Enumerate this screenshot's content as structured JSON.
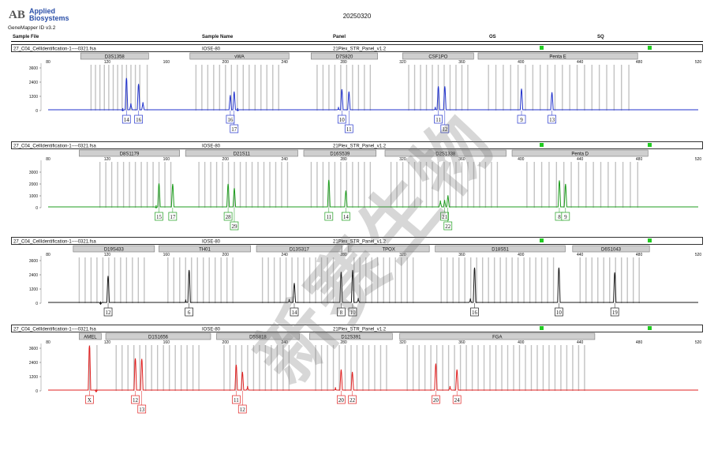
{
  "header": {
    "logo_mark_text": "AB",
    "brand_line1": "Applied",
    "brand_line2": "Biosystems",
    "product": "GeneMapper ID v3.2",
    "report_date": "20250320",
    "columns": {
      "sample_file": "Sample File",
      "sample_name": "Sample Name",
      "panel": "Panel",
      "os": "OS",
      "sq": "SQ"
    }
  },
  "colors": {
    "blue": "#2233cc",
    "green": "#1f9e1f",
    "black": "#1a1a1a",
    "red": "#e02020",
    "bin": "#c2c2c2",
    "locus_box": "#cfcfcf",
    "status_ok": "#22cc22"
  },
  "watermark": "新赛生物",
  "chart_data": [
    {
      "type": "line",
      "dye": "blue",
      "sample_file": "27_C04_CellIdentification-1----0321.fsa",
      "sample_name": "IOSE-80",
      "panel": "21Plex_STR_Panel_v1.2",
      "xlim": [
        80,
        520
      ],
      "xticks": [
        "80",
        "120",
        "160",
        "200",
        "240",
        "280",
        "320",
        "360",
        "400",
        "440",
        "480",
        "520"
      ],
      "ylim": [
        0,
        4000
      ],
      "yticks": [
        "0",
        "1200",
        "2400",
        "3600"
      ],
      "loci": [
        {
          "name": "D3S1358",
          "start": 102,
          "end": 148
        },
        {
          "name": "vWA",
          "start": 176,
          "end": 243
        },
        {
          "name": "D7S820",
          "start": 258,
          "end": 303
        },
        {
          "name": "CSF1PO",
          "start": 320,
          "end": 368
        },
        {
          "name": "Penta E",
          "start": 371,
          "end": 479
        }
      ],
      "bins": [
        109,
        112,
        115,
        118,
        121,
        124,
        127,
        130,
        133,
        136,
        139,
        142,
        147,
        180,
        184,
        188,
        192,
        196,
        200,
        204,
        208,
        212,
        216,
        220,
        224,
        228,
        232,
        236,
        262,
        266,
        270,
        274,
        278,
        282,
        286,
        290,
        294,
        298,
        324,
        328,
        332,
        336,
        340,
        344,
        348,
        352,
        356,
        360,
        364,
        378,
        383,
        388,
        393,
        398,
        403,
        408,
        413,
        418,
        423,
        428,
        433,
        438,
        443,
        448,
        453,
        458,
        463,
        468,
        473
      ],
      "peaks": [
        {
          "x": 130.5,
          "y": 200
        },
        {
          "x": 133.0,
          "y": 2750
        },
        {
          "x": 136.0,
          "y": 600
        },
        {
          "x": 141.2,
          "y": 2250
        },
        {
          "x": 144.2,
          "y": 700
        },
        {
          "x": 203.3,
          "y": 1300
        },
        {
          "x": 205.9,
          "y": 1600
        },
        {
          "x": 208.3,
          "y": 200
        },
        {
          "x": 276.5,
          "y": 300
        },
        {
          "x": 278.8,
          "y": 1800
        },
        {
          "x": 283.6,
          "y": 1600
        },
        {
          "x": 342.0,
          "y": 300
        },
        {
          "x": 344.1,
          "y": 2050
        },
        {
          "x": 348.5,
          "y": 2050
        },
        {
          "x": 400.4,
          "y": 1850
        },
        {
          "x": 421.0,
          "y": 1550
        }
      ],
      "allele_labels": [
        {
          "text": "14",
          "x": 133.0,
          "row": 1
        },
        {
          "text": "16",
          "x": 141.2,
          "row": 1
        },
        {
          "text": "16",
          "x": 203.3,
          "row": 1
        },
        {
          "text": "17",
          "x": 205.9,
          "row": 2
        },
        {
          "text": "10",
          "x": 278.8,
          "row": 1
        },
        {
          "text": "11",
          "x": 283.6,
          "row": 2
        },
        {
          "text": "11",
          "x": 344.1,
          "row": 1
        },
        {
          "text": "12",
          "x": 348.5,
          "row": 2
        },
        {
          "text": "9",
          "x": 400.4,
          "row": 1
        },
        {
          "text": "13",
          "x": 421.0,
          "row": 1
        }
      ]
    },
    {
      "type": "line",
      "dye": "green",
      "sample_file": "27_C04_CellIdentification-1----0321.fsa",
      "sample_name": "IOSE-80",
      "panel": "21Plex_STR_Panel_v1.2",
      "xlim": [
        80,
        520
      ],
      "xticks": [
        "80",
        "120",
        "160",
        "200",
        "240",
        "280",
        "320",
        "360",
        "400",
        "440",
        "480",
        "520"
      ],
      "ylim": [
        0,
        4000
      ],
      "yticks": [
        "0",
        "1000",
        "2000",
        "3000"
      ],
      "loci": [
        {
          "name": "D8S1179",
          "start": 101,
          "end": 169
        },
        {
          "name": "D21S11",
          "start": 173,
          "end": 249
        },
        {
          "name": "D16S539",
          "start": 253,
          "end": 302
        },
        {
          "name": "D2S1338",
          "start": 308,
          "end": 390
        },
        {
          "name": "Penta D",
          "start": 394,
          "end": 486
        }
      ],
      "bins": [
        115,
        119,
        123,
        127,
        131,
        135,
        139,
        143,
        147,
        151,
        155,
        159,
        163,
        182,
        186,
        190,
        194,
        198,
        202,
        206,
        210,
        214,
        218,
        222,
        226,
        230,
        234,
        238,
        242,
        258,
        262,
        266,
        270,
        274,
        278,
        282,
        286,
        290,
        294,
        298,
        312,
        316,
        320,
        324,
        328,
        332,
        336,
        340,
        344,
        348,
        352,
        356,
        360,
        364,
        368,
        372,
        376,
        380,
        384,
        404,
        409,
        414,
        419,
        424,
        429,
        434,
        439,
        444,
        449,
        454,
        459,
        464,
        469,
        474,
        479
      ],
      "peaks": [
        {
          "x": 153.1,
          "y": 200
        },
        {
          "x": 155.0,
          "y": 2050
        },
        {
          "x": 164.3,
          "y": 2000
        },
        {
          "x": 201.8,
          "y": 2000
        },
        {
          "x": 206.0,
          "y": 1650
        },
        {
          "x": 270.0,
          "y": 2350
        },
        {
          "x": 281.5,
          "y": 1450
        },
        {
          "x": 345.5,
          "y": 600
        },
        {
          "x": 348.4,
          "y": 650
        },
        {
          "x": 350.6,
          "y": 1050
        },
        {
          "x": 426.0,
          "y": 2300
        },
        {
          "x": 430.2,
          "y": 2000
        }
      ],
      "allele_labels": [
        {
          "text": "15",
          "x": 155.0,
          "row": 1
        },
        {
          "text": "17",
          "x": 164.3,
          "row": 1
        },
        {
          "text": "28",
          "x": 201.8,
          "row": 1
        },
        {
          "text": "29",
          "x": 206.0,
          "row": 2
        },
        {
          "text": "11",
          "x": 270.0,
          "row": 1
        },
        {
          "text": "14",
          "x": 281.5,
          "row": 1
        },
        {
          "text": "21",
          "x": 348.4,
          "row": 1
        },
        {
          "text": "22",
          "x": 350.6,
          "row": 2
        },
        {
          "text": "8",
          "x": 426.0,
          "row": 1
        },
        {
          "text": "9",
          "x": 430.2,
          "row": 1
        }
      ]
    },
    {
      "type": "line",
      "dye": "black",
      "sample_file": "27_C04_CellIdentification-1----0321.fsa",
      "sample_name": "IOSE-80",
      "panel": "21Plex_STR_Panel_v1.2",
      "xlim": [
        80,
        520
      ],
      "xticks": [
        "80",
        "120",
        "160",
        "200",
        "240",
        "280",
        "320",
        "360",
        "400",
        "440",
        "480",
        "520"
      ],
      "ylim": [
        0,
        4000
      ],
      "yticks": [
        "0",
        "1200",
        "2400",
        "3600"
      ],
      "loci": [
        {
          "name": "D19S433",
          "start": 97,
          "end": 152
        },
        {
          "name": "TH01",
          "start": 155,
          "end": 217
        },
        {
          "name": "D13S317",
          "start": 221,
          "end": 279
        },
        {
          "name": "TPOX",
          "start": 283,
          "end": 338
        },
        {
          "name": "D18S51",
          "start": 342,
          "end": 430
        },
        {
          "name": "D6S1043",
          "start": 435,
          "end": 487
        }
      ],
      "bins": [
        101,
        105,
        109,
        113,
        117,
        121,
        125,
        129,
        133,
        137,
        141,
        145,
        161,
        165,
        169,
        173,
        177,
        181,
        185,
        189,
        193,
        197,
        201,
        205,
        225,
        229,
        233,
        237,
        241,
        245,
        249,
        253,
        257,
        261,
        265,
        269,
        273,
        287,
        291,
        295,
        299,
        303,
        307,
        311,
        315,
        319,
        323,
        327,
        346,
        350,
        354,
        358,
        362,
        366,
        370,
        374,
        378,
        382,
        386,
        390,
        394,
        398,
        402,
        406,
        410,
        414,
        418,
        422,
        440,
        444,
        448,
        452,
        456,
        460,
        464,
        468,
        472,
        476,
        480
      ],
      "peaks": [
        {
          "x": 115.5,
          "y": 150
        },
        {
          "x": 120.6,
          "y": 2300
        },
        {
          "x": 175.4,
          "y": 2800
        },
        {
          "x": 173.1,
          "y": 300
        },
        {
          "x": 243.2,
          "y": 350
        },
        {
          "x": 246.6,
          "y": 1700
        },
        {
          "x": 278.3,
          "y": 2650
        },
        {
          "x": 286.1,
          "y": 2800
        },
        {
          "x": 289.9,
          "y": 450
        },
        {
          "x": 368.6,
          "y": 3000
        },
        {
          "x": 365.8,
          "y": 400
        },
        {
          "x": 425.7,
          "y": 3000
        },
        {
          "x": 463.5,
          "y": 2600
        }
      ],
      "allele_labels": [
        {
          "text": "12",
          "x": 120.6,
          "row": 1
        },
        {
          "text": "6",
          "x": 175.4,
          "row": 1
        },
        {
          "text": "14",
          "x": 246.6,
          "row": 1
        },
        {
          "text": "8",
          "x": 278.3,
          "row": 1
        },
        {
          "text": "10",
          "x": 286.1,
          "row": 1
        },
        {
          "text": "16",
          "x": 368.6,
          "row": 1
        },
        {
          "text": "10",
          "x": 425.7,
          "row": 1
        },
        {
          "text": "19",
          "x": 463.5,
          "row": 1
        }
      ]
    },
    {
      "type": "line",
      "dye": "red",
      "sample_file": "27_C04_CellIdentification-1----0321.fsa",
      "sample_name": "IOSE-80",
      "panel": "21Plex_STR_Panel_v1.2",
      "xlim": [
        80,
        520
      ],
      "xticks": [
        "80",
        "120",
        "160",
        "200",
        "240",
        "280",
        "320",
        "360",
        "400",
        "440",
        "480",
        "520"
      ],
      "ylim": [
        0,
        4000
      ],
      "yticks": [
        "0",
        "1200",
        "2400",
        "3600"
      ],
      "loci": [
        {
          "name": "AMEL",
          "start": 101,
          "end": 116
        },
        {
          "name": "D1S1656",
          "start": 119,
          "end": 190
        },
        {
          "name": "D5S818",
          "start": 194,
          "end": 250
        },
        {
          "name": "D12S391",
          "start": 257,
          "end": 313
        },
        {
          "name": "FGA",
          "start": 318,
          "end": 450
        }
      ],
      "bins": [
        108,
        113,
        126,
        130,
        134,
        138,
        142,
        146,
        150,
        154,
        158,
        162,
        166,
        170,
        174,
        178,
        182,
        199,
        203,
        207,
        211,
        215,
        219,
        223,
        227,
        231,
        235,
        239,
        243,
        261,
        265,
        269,
        273,
        277,
        281,
        285,
        289,
        293,
        297,
        301,
        305,
        309,
        323,
        327,
        331,
        335,
        339,
        343,
        347,
        351,
        355,
        359,
        363,
        367,
        371,
        375,
        379,
        383,
        387,
        391,
        395,
        399,
        403,
        407,
        411,
        415,
        419,
        423,
        427,
        431,
        435,
        439,
        443
      ],
      "peaks": [
        {
          "x": 108.0,
          "y": 3800
        },
        {
          "x": 112.5,
          "y": 150
        },
        {
          "x": 139.0,
          "y": 2750
        },
        {
          "x": 143.4,
          "y": 2700
        },
        {
          "x": 207.3,
          "y": 2200
        },
        {
          "x": 211.5,
          "y": 1600
        },
        {
          "x": 215.0,
          "y": 400
        },
        {
          "x": 274.5,
          "y": 300
        },
        {
          "x": 278.3,
          "y": 1800
        },
        {
          "x": 285.9,
          "y": 1600
        },
        {
          "x": 342.4,
          "y": 2300
        },
        {
          "x": 352.0,
          "y": 400
        },
        {
          "x": 356.7,
          "y": 1800
        }
      ],
      "allele_labels": [
        {
          "text": "X",
          "x": 108.0,
          "row": 1
        },
        {
          "text": "12",
          "x": 139.0,
          "row": 1
        },
        {
          "text": "13",
          "x": 143.4,
          "row": 2
        },
        {
          "text": "11",
          "x": 207.3,
          "row": 1
        },
        {
          "text": "12",
          "x": 211.5,
          "row": 2
        },
        {
          "text": "20",
          "x": 278.3,
          "row": 1
        },
        {
          "text": "22",
          "x": 285.9,
          "row": 1
        },
        {
          "text": "20",
          "x": 342.4,
          "row": 1
        },
        {
          "text": "24",
          "x": 356.7,
          "row": 1
        }
      ]
    }
  ]
}
